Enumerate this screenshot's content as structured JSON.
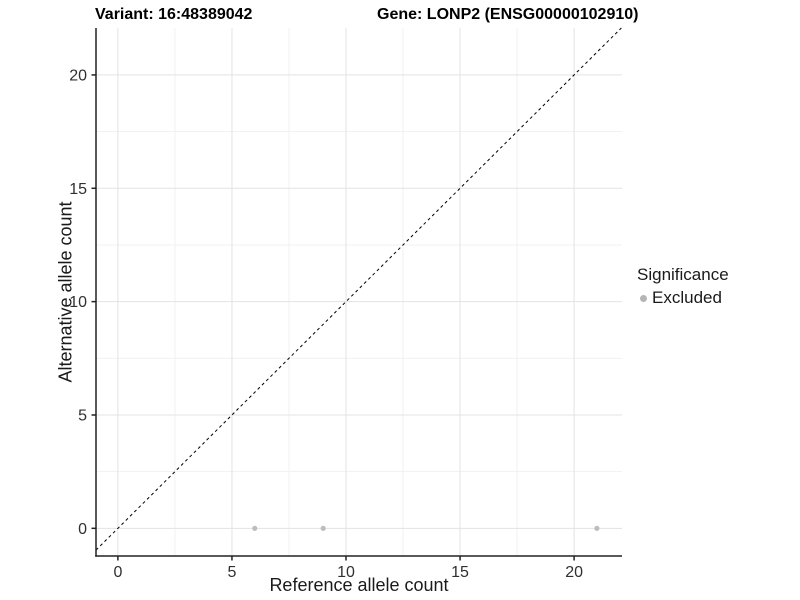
{
  "chart_data": {
    "type": "scatter",
    "title_left": "Variant: 16:48389042",
    "title_right": "Gene: LONP2 (ENSG00000102910)",
    "xlabel": "Reference allele count",
    "ylabel": "Alternative allele count",
    "xlim": [
      -0.96,
      22.1
    ],
    "ylim": [
      -1.22,
      22.07
    ],
    "xticks": [
      0,
      5,
      10,
      15,
      20
    ],
    "yticks": [
      0,
      5,
      10,
      15,
      20
    ],
    "xticks_minor": [
      2.5,
      7.5,
      12.5,
      17.5
    ],
    "yticks_minor": [
      2.5,
      7.5,
      12.5,
      17.5
    ],
    "grid": "major+minor",
    "reference_line": {
      "type": "identity y=x",
      "style": "dashed",
      "color": "#000000"
    },
    "series": [
      {
        "name": "Excluded",
        "color": "#bdbdbd",
        "points": [
          [
            6,
            0
          ],
          [
            9,
            0
          ],
          [
            21,
            0
          ]
        ]
      }
    ],
    "legend": {
      "title": "Significance",
      "position": "right",
      "items": [
        {
          "label": "Excluded",
          "color": "#b5b5b5"
        }
      ]
    },
    "colors": {
      "grid_major": "#e3e3e3",
      "grid_minor": "#f1f1f1",
      "axis_line": "#222222",
      "tick_label": "#303030"
    }
  }
}
